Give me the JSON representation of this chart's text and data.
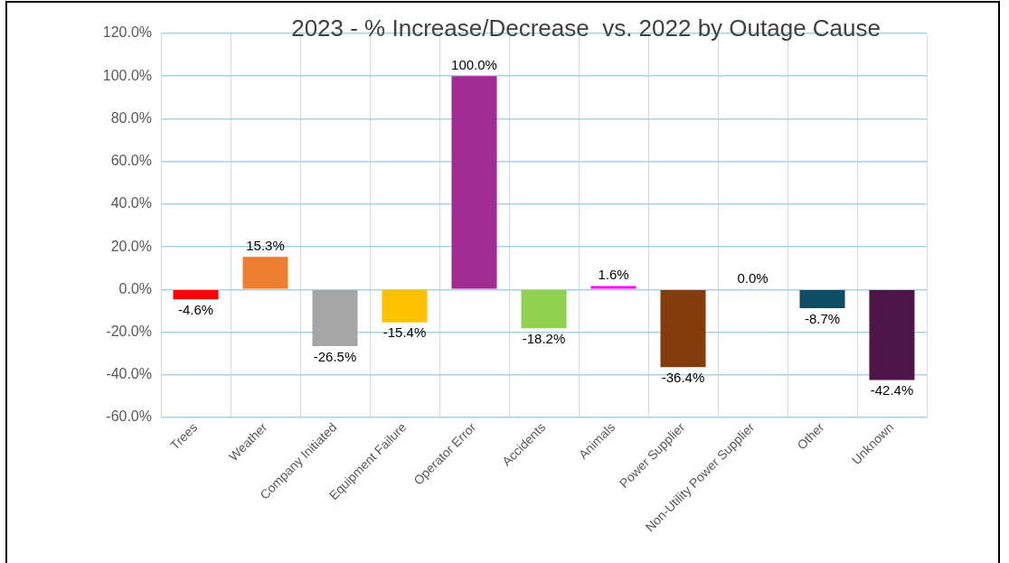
{
  "chart_data": {
    "type": "bar",
    "title": "2023 - % Increase/Decrease  vs. 2022 by Outage Cause",
    "categories": [
      "Trees",
      "Weather",
      "Company Initiated",
      "Equipment Failure",
      "Operator Error",
      "Accidents",
      "Animals",
      "Power Supplier",
      "Non-Utility Power Supplier",
      "Other",
      "Unknown"
    ],
    "values": [
      -4.6,
      15.3,
      -26.5,
      -15.4,
      100.0,
      -18.2,
      1.6,
      -36.4,
      0.0,
      -8.7,
      -42.4
    ],
    "value_labels": [
      "-4.6%",
      "15.3%",
      "-26.5%",
      "-15.4%",
      "100.0%",
      "-18.2%",
      "1.6%",
      "-36.4%",
      "0.0%",
      "-8.7%",
      "-42.4%"
    ],
    "colors": [
      "#ff0000",
      "#ed7d31",
      "#a5a5a5",
      "#ffc000",
      "#a02b93",
      "#92d050",
      "#ff00ff",
      "#843c0c",
      "#4472c4",
      "#0e4d64",
      "#4e1548"
    ],
    "ylim": [
      -60,
      120
    ],
    "yticks": [
      {
        "value": -60,
        "label": "-60.0%"
      },
      {
        "value": -40,
        "label": "-40.0%"
      },
      {
        "value": -20,
        "label": "-20.0%"
      },
      {
        "value": 0,
        "label": "0.0%"
      },
      {
        "value": 20,
        "label": "20.0%"
      },
      {
        "value": 40,
        "label": "40.0%"
      },
      {
        "value": 60,
        "label": "60.0%"
      },
      {
        "value": 80,
        "label": "80.0%"
      },
      {
        "value": 100,
        "label": "100.0%"
      },
      {
        "value": 120,
        "label": "120.0%"
      }
    ],
    "grid": true,
    "legend": false
  }
}
